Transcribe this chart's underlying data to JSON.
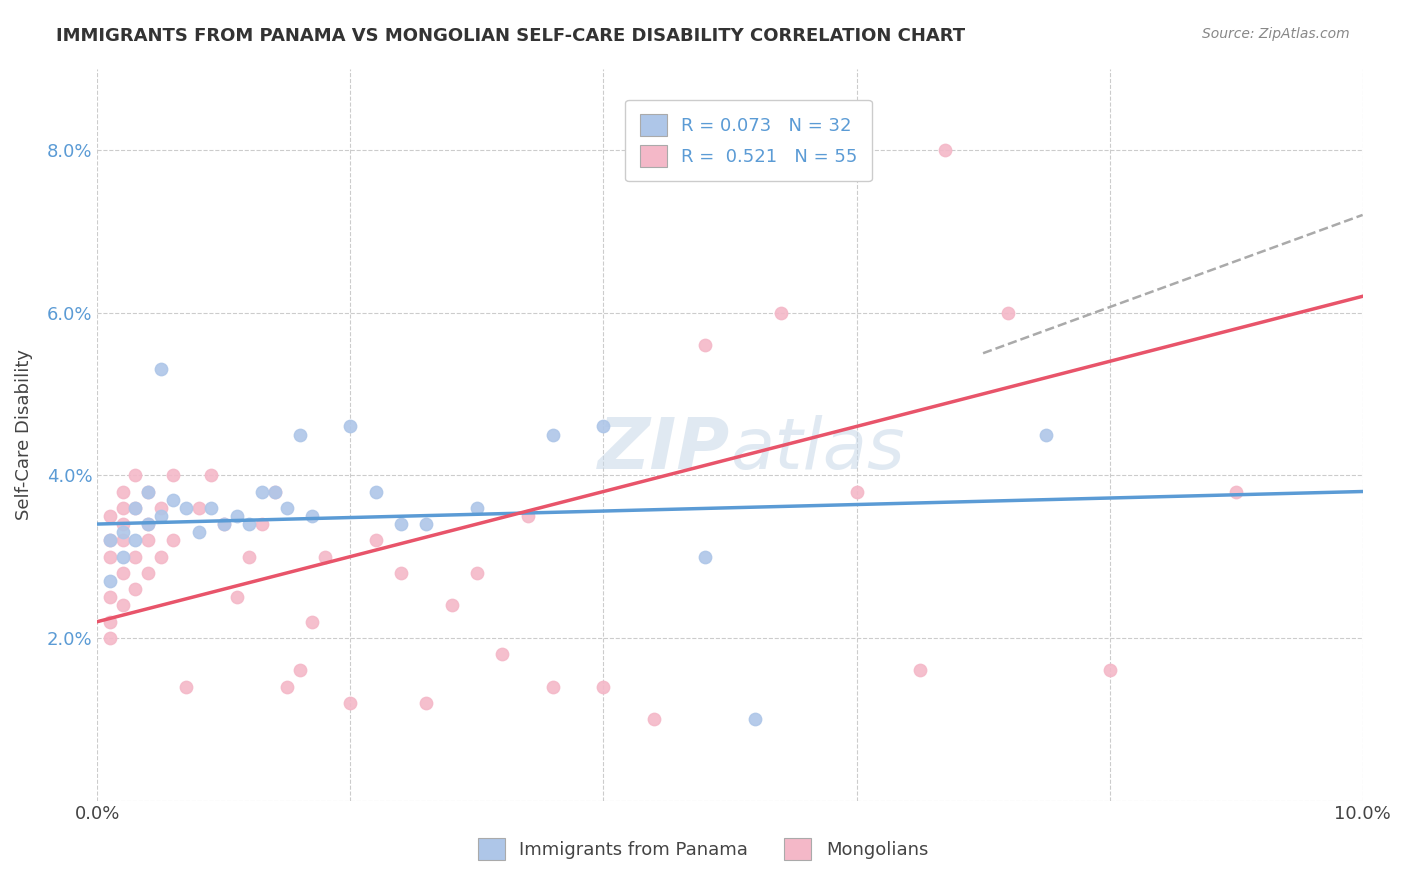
{
  "title": "IMMIGRANTS FROM PANAMA VS MONGOLIAN SELF-CARE DISABILITY CORRELATION CHART",
  "source": "Source: ZipAtlas.com",
  "xlabel": "",
  "ylabel": "Self-Care Disability",
  "xlim": [
    0.0,
    0.1
  ],
  "ylim": [
    0.0,
    0.09
  ],
  "xticks": [
    0.0,
    0.02,
    0.04,
    0.06,
    0.08,
    0.1
  ],
  "xticklabels": [
    "0.0%",
    "",
    "",
    "",
    "",
    "10.0%"
  ],
  "yticks": [
    0.0,
    0.02,
    0.04,
    0.06,
    0.08
  ],
  "yticklabels": [
    "",
    "2.0%",
    "4.0%",
    "6.0%",
    "8.0%"
  ],
  "legend1_label": "R = 0.073   N = 32",
  "legend2_label": "R =  0.521   N = 55",
  "legend1_color": "#aec6e8",
  "legend2_color": "#f4b8c8",
  "scatter1_color": "#aec6e8",
  "scatter2_color": "#f4b8c8",
  "line1_color": "#5b9bd5",
  "line2_color": "#e8546a",
  "background_color": "#ffffff",
  "grid_color": "#cccccc",
  "panama_points": [
    [
      0.001,
      0.032
    ],
    [
      0.001,
      0.027
    ],
    [
      0.002,
      0.03
    ],
    [
      0.002,
      0.033
    ],
    [
      0.003,
      0.032
    ],
    [
      0.003,
      0.036
    ],
    [
      0.004,
      0.034
    ],
    [
      0.004,
      0.038
    ],
    [
      0.005,
      0.035
    ],
    [
      0.005,
      0.053
    ],
    [
      0.006,
      0.037
    ],
    [
      0.007,
      0.036
    ],
    [
      0.008,
      0.033
    ],
    [
      0.009,
      0.036
    ],
    [
      0.01,
      0.034
    ],
    [
      0.011,
      0.035
    ],
    [
      0.012,
      0.034
    ],
    [
      0.013,
      0.038
    ],
    [
      0.014,
      0.038
    ],
    [
      0.015,
      0.036
    ],
    [
      0.016,
      0.045
    ],
    [
      0.017,
      0.035
    ],
    [
      0.02,
      0.046
    ],
    [
      0.022,
      0.038
    ],
    [
      0.024,
      0.034
    ],
    [
      0.026,
      0.034
    ],
    [
      0.03,
      0.036
    ],
    [
      0.036,
      0.045
    ],
    [
      0.04,
      0.046
    ],
    [
      0.048,
      0.03
    ],
    [
      0.052,
      0.01
    ],
    [
      0.075,
      0.045
    ]
  ],
  "mongolia_points": [
    [
      0.001,
      0.025
    ],
    [
      0.001,
      0.022
    ],
    [
      0.001,
      0.02
    ],
    [
      0.001,
      0.03
    ],
    [
      0.001,
      0.032
    ],
    [
      0.001,
      0.035
    ],
    [
      0.002,
      0.024
    ],
    [
      0.002,
      0.028
    ],
    [
      0.002,
      0.032
    ],
    [
      0.002,
      0.034
    ],
    [
      0.002,
      0.036
    ],
    [
      0.002,
      0.038
    ],
    [
      0.003,
      0.026
    ],
    [
      0.003,
      0.03
    ],
    [
      0.003,
      0.036
    ],
    [
      0.003,
      0.04
    ],
    [
      0.004,
      0.028
    ],
    [
      0.004,
      0.032
    ],
    [
      0.004,
      0.034
    ],
    [
      0.004,
      0.038
    ],
    [
      0.005,
      0.03
    ],
    [
      0.005,
      0.036
    ],
    [
      0.006,
      0.032
    ],
    [
      0.006,
      0.04
    ],
    [
      0.007,
      0.014
    ],
    [
      0.008,
      0.036
    ],
    [
      0.009,
      0.04
    ],
    [
      0.01,
      0.034
    ],
    [
      0.011,
      0.025
    ],
    [
      0.012,
      0.03
    ],
    [
      0.013,
      0.034
    ],
    [
      0.014,
      0.038
    ],
    [
      0.015,
      0.014
    ],
    [
      0.016,
      0.016
    ],
    [
      0.017,
      0.022
    ],
    [
      0.018,
      0.03
    ],
    [
      0.02,
      0.012
    ],
    [
      0.022,
      0.032
    ],
    [
      0.024,
      0.028
    ],
    [
      0.026,
      0.012
    ],
    [
      0.028,
      0.024
    ],
    [
      0.03,
      0.028
    ],
    [
      0.032,
      0.018
    ],
    [
      0.034,
      0.035
    ],
    [
      0.036,
      0.014
    ],
    [
      0.04,
      0.014
    ],
    [
      0.044,
      0.01
    ],
    [
      0.048,
      0.056
    ],
    [
      0.054,
      0.06
    ],
    [
      0.06,
      0.038
    ],
    [
      0.065,
      0.016
    ],
    [
      0.067,
      0.08
    ],
    [
      0.072,
      0.06
    ],
    [
      0.08,
      0.016
    ],
    [
      0.09,
      0.038
    ]
  ],
  "panama_line": [
    [
      0.0,
      0.034
    ],
    [
      0.1,
      0.038
    ]
  ],
  "mongolia_line": [
    [
      0.0,
      0.022
    ],
    [
      0.1,
      0.062
    ]
  ],
  "mongolia_line_dash": [
    [
      0.07,
      0.055
    ],
    [
      0.1,
      0.072
    ]
  ]
}
